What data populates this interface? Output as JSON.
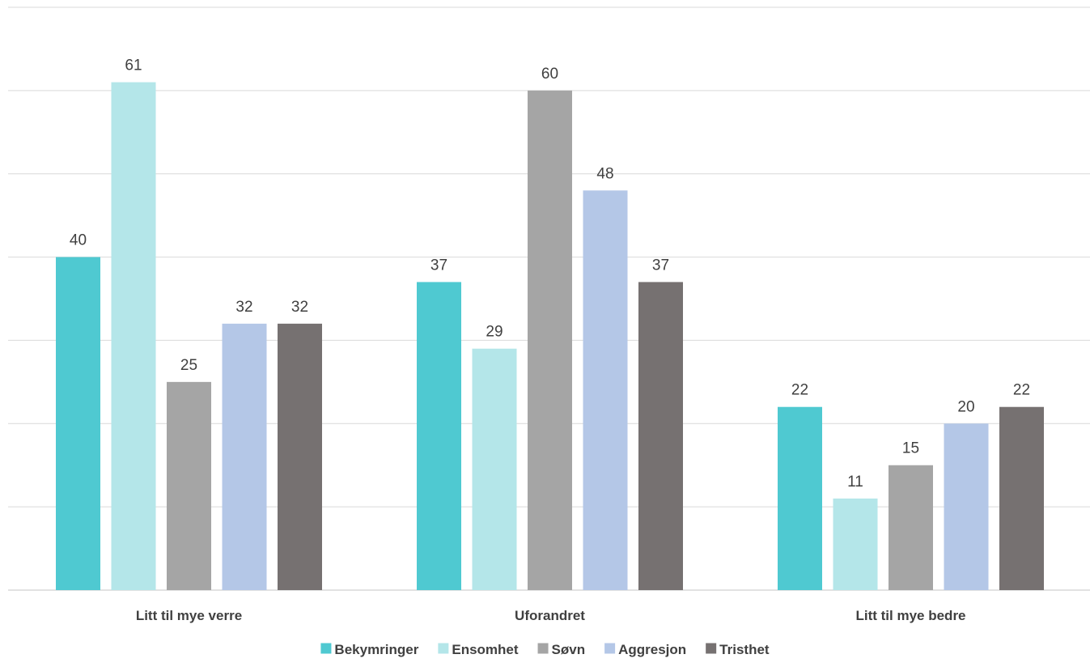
{
  "chart_data": {
    "type": "bar",
    "title": "",
    "xlabel": "",
    "ylabel": "",
    "categories": [
      "Litt til mye verre",
      "Uforandret",
      "Litt til mye bedre"
    ],
    "series": [
      {
        "name": "Bekymringer",
        "color": "#4fc9d1",
        "values": [
          40,
          37,
          22
        ]
      },
      {
        "name": "Ensomhet",
        "color": "#b4e6e9",
        "values": [
          61,
          29,
          11
        ]
      },
      {
        "name": "Søvn",
        "color": "#a5a5a5",
        "values": [
          25,
          60,
          15
        ]
      },
      {
        "name": "Aggresjon",
        "color": "#b4c7e7",
        "values": [
          32,
          48,
          20
        ]
      },
      {
        "name": "Tristhet",
        "color": "#767171",
        "values": [
          32,
          37,
          22
        ]
      }
    ],
    "ylim": [
      0,
      70
    ],
    "y_gridline_step": 10,
    "grid": true,
    "y_tick_labels_visible": false,
    "data_labels": true,
    "legend_position": "bottom"
  }
}
